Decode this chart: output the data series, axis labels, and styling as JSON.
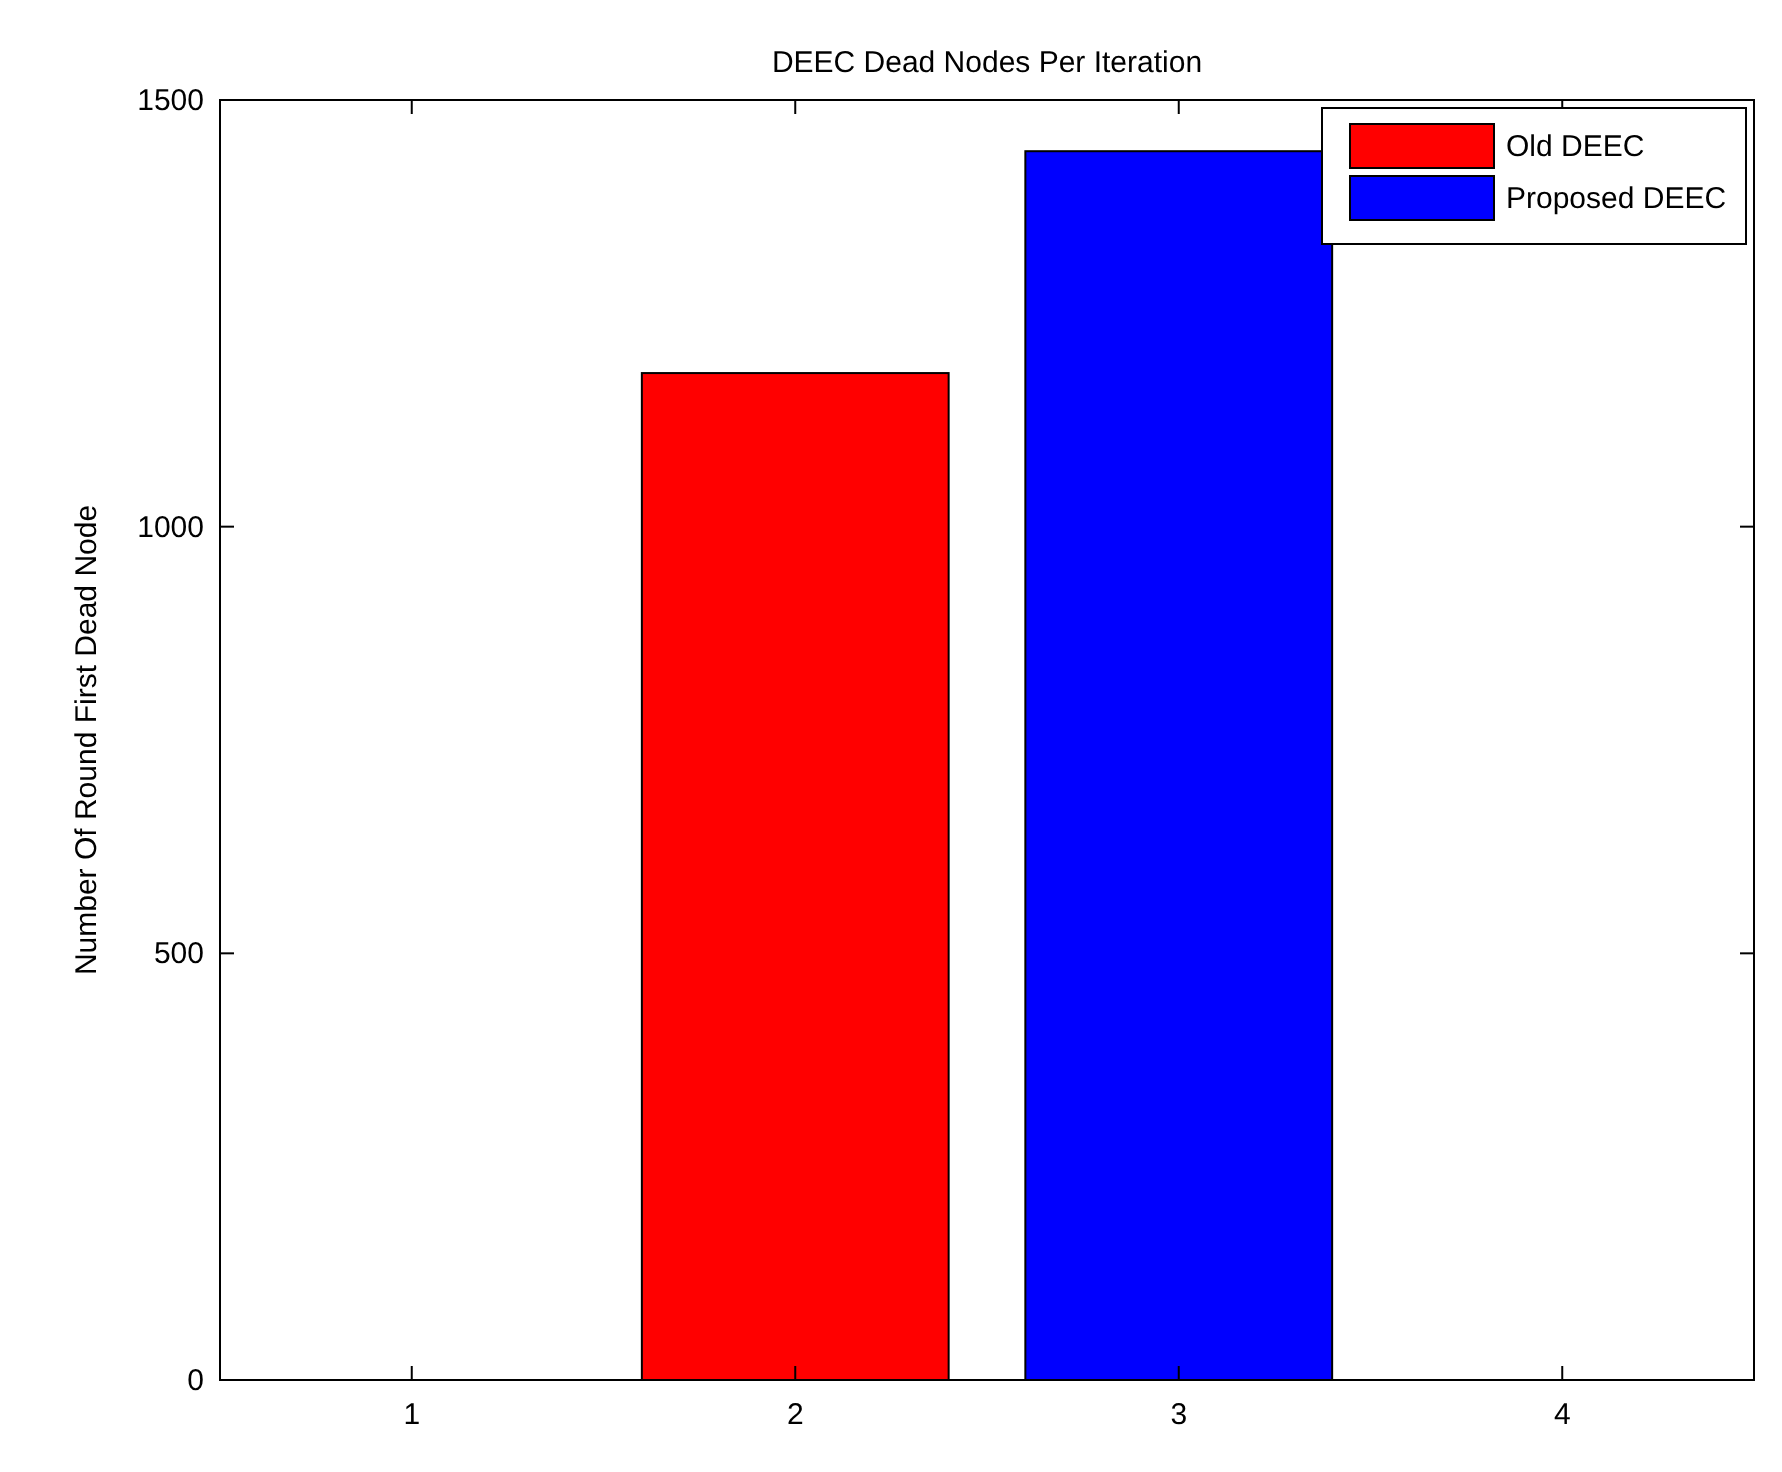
{
  "chart_data": {
    "type": "bar",
    "title": "DEEC Dead Nodes Per Iteration",
    "ylabel": "Number Of Round First Dead Node",
    "series": [
      {
        "name": "Old DEEC",
        "color": "#ff0000",
        "x": [
          2
        ],
        "values": [
          1180
        ]
      },
      {
        "name": "Proposed DEEC",
        "color": "#0000ff",
        "x": [
          3
        ],
        "values": [
          1440
        ]
      }
    ],
    "xlim": [
      0.5,
      4.5
    ],
    "xticks": [
      1,
      2,
      3,
      4
    ],
    "ylim": [
      0,
      1500
    ],
    "yticks": [
      0,
      500,
      1000,
      1500
    ],
    "grid": false,
    "legend": "top right"
  }
}
